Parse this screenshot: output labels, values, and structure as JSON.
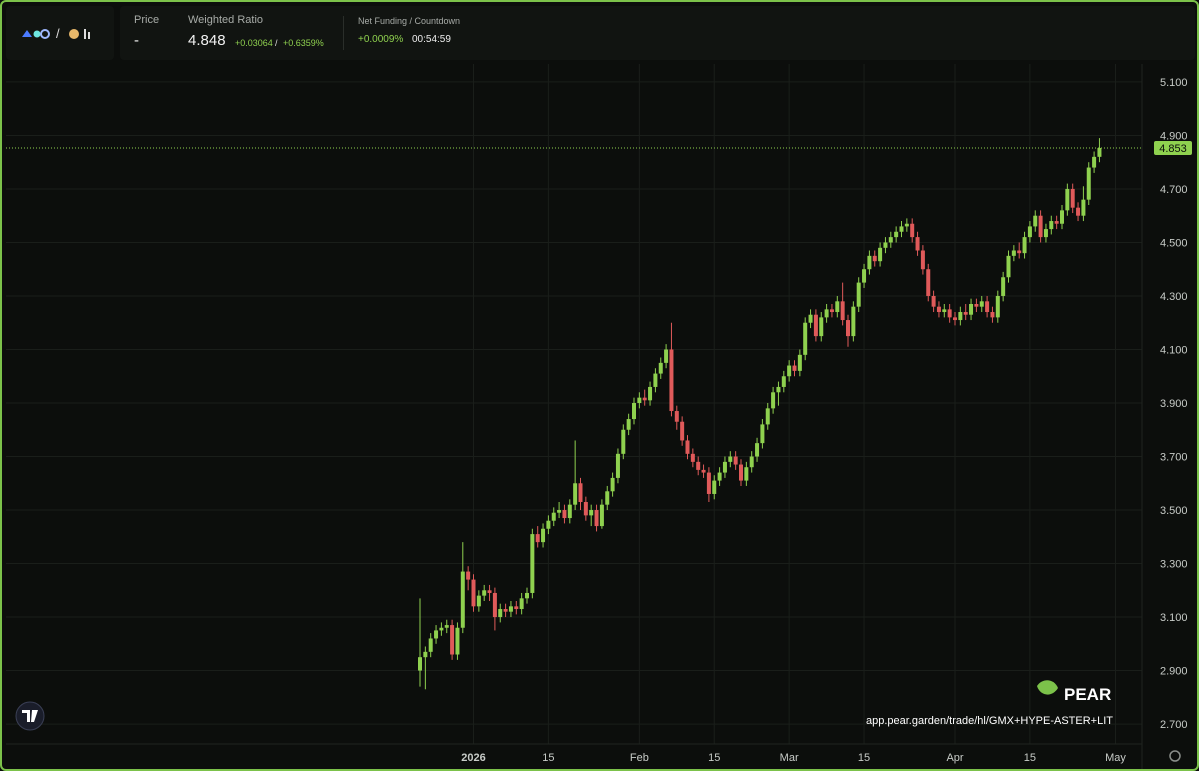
{
  "header": {
    "separator": "/",
    "price_label": "Price",
    "price_value": "-",
    "ratio_label": "Weighted Ratio",
    "ratio_value": "4.848",
    "ratio_change": "+0.03064",
    "ratio_change_pct": "+0.6359%",
    "funding_label": "Net Funding / Countdown",
    "funding_value": "+0.0009%",
    "countdown": "00:54:59"
  },
  "watermark": {
    "brand": "PEAR",
    "url": "app.pear.garden/trade/hl/GMX+HYPE-ASTER+LIT"
  },
  "chart_data": {
    "type": "candlestick",
    "up_color": "#8fd14f",
    "down_color": "#e05a5a",
    "grid": true,
    "ylim": [
      2.633,
      5.167
    ],
    "yticks": [
      {
        "value": 2.7,
        "label": "2.700"
      },
      {
        "value": 2.9,
        "label": "2.900"
      },
      {
        "value": 3.1,
        "label": "3.100"
      },
      {
        "value": 3.3,
        "label": "3.300"
      },
      {
        "value": 3.5,
        "label": "3.500"
      },
      {
        "value": 3.7,
        "label": "3.700"
      },
      {
        "value": 3.9,
        "label": "3.900"
      },
      {
        "value": 4.1,
        "label": "4.100"
      },
      {
        "value": 4.3,
        "label": "4.300"
      },
      {
        "value": 4.5,
        "label": "4.500"
      },
      {
        "value": 4.7,
        "label": "4.700"
      },
      {
        "value": 4.9,
        "label": "4.900"
      },
      {
        "value": 5.1,
        "label": "5.100"
      }
    ],
    "last_price": 4.853,
    "categories": [
      null,
      null,
      null,
      null,
      null,
      null,
      null,
      null,
      null,
      null,
      "2026",
      null,
      null,
      null,
      null,
      null,
      null,
      null,
      null,
      null,
      null,
      null,
      null,
      null,
      "15",
      null,
      null,
      null,
      null,
      null,
      null,
      null,
      null,
      null,
      null,
      null,
      null,
      null,
      null,
      null,
      null,
      "Feb",
      null,
      null,
      null,
      null,
      null,
      null,
      null,
      null,
      null,
      null,
      null,
      null,
      null,
      "15",
      null,
      null,
      null,
      null,
      null,
      null,
      null,
      null,
      null,
      null,
      null,
      null,
      null,
      "Mar",
      null,
      null,
      null,
      null,
      null,
      null,
      null,
      null,
      null,
      null,
      null,
      null,
      null,
      "15",
      null,
      null,
      null,
      null,
      null,
      null,
      null,
      null,
      null,
      null,
      null,
      null,
      null,
      null,
      null,
      null,
      "Apr",
      null,
      null,
      null,
      null,
      null,
      null,
      null,
      null,
      null,
      null,
      null,
      null,
      null,
      "15",
      null,
      null,
      null,
      null,
      null,
      null,
      null,
      null,
      null,
      null,
      null,
      null,
      null,
      null,
      null,
      "May"
    ],
    "open": [
      2.9,
      2.95,
      2.97,
      3.02,
      3.05,
      3.06,
      3.07,
      2.96,
      3.06,
      3.27,
      3.24,
      3.14,
      3.18,
      3.2,
      3.19,
      3.1,
      3.13,
      3.12,
      3.14,
      3.13,
      3.17,
      3.19,
      3.41,
      3.38,
      3.43,
      3.46,
      3.49,
      3.5,
      3.47,
      3.52,
      3.6,
      3.53,
      3.48,
      3.5,
      3.44,
      3.52,
      3.57,
      3.62,
      3.71,
      3.8,
      3.84,
      3.9,
      3.92,
      3.91,
      3.96,
      4.01,
      4.05,
      4.1,
      3.87,
      3.83,
      3.76,
      3.71,
      3.68,
      3.65,
      3.64,
      3.56,
      3.61,
      3.64,
      3.68,
      3.7,
      3.67,
      3.61,
      3.66,
      3.7,
      3.75,
      3.82,
      3.88,
      3.94,
      3.96,
      4.0,
      4.04,
      4.02,
      4.08,
      4.2,
      4.23,
      4.15,
      4.22,
      4.25,
      4.24,
      4.28,
      4.21,
      4.15,
      4.26,
      4.35,
      4.4,
      4.45,
      4.43,
      4.48,
      4.5,
      4.52,
      4.54,
      4.56,
      4.57,
      4.52,
      4.47,
      4.4,
      4.3,
      4.26,
      4.24,
      4.25,
      4.22,
      4.21,
      4.24,
      4.23,
      4.27,
      4.26,
      4.28,
      4.24,
      4.22,
      4.3,
      4.37,
      4.45,
      4.47,
      4.46,
      4.52,
      4.56,
      4.6,
      4.52,
      4.55,
      4.58,
      4.57,
      4.62,
      4.7,
      4.63,
      4.6,
      4.66,
      4.78,
      4.82,
      null,
      null,
      null
    ],
    "high": [
      3.17,
      2.99,
      3.04,
      3.07,
      3.08,
      3.09,
      3.09,
      3.08,
      3.38,
      3.29,
      3.26,
      3.2,
      3.22,
      3.22,
      3.21,
      3.15,
      3.15,
      3.16,
      3.16,
      3.19,
      3.21,
      3.43,
      3.44,
      3.45,
      3.48,
      3.51,
      3.53,
      3.52,
      3.54,
      3.76,
      3.62,
      3.55,
      3.52,
      3.52,
      3.54,
      3.59,
      3.64,
      3.73,
      3.82,
      3.86,
      3.92,
      3.94,
      3.95,
      3.98,
      4.03,
      4.07,
      4.12,
      4.2,
      3.89,
      3.85,
      3.78,
      3.73,
      3.7,
      3.67,
      3.66,
      3.63,
      3.66,
      3.7,
      3.72,
      3.72,
      3.69,
      3.68,
      3.72,
      3.77,
      3.84,
      3.9,
      3.96,
      3.98,
      4.02,
      4.06,
      4.06,
      4.1,
      4.22,
      4.25,
      4.25,
      4.24,
      4.27,
      4.27,
      4.3,
      4.35,
      4.23,
      4.28,
      4.37,
      4.42,
      4.47,
      4.47,
      4.5,
      4.52,
      4.54,
      4.56,
      4.58,
      4.59,
      4.59,
      4.54,
      4.49,
      4.42,
      4.32,
      4.28,
      4.27,
      4.27,
      4.24,
      4.26,
      4.27,
      4.29,
      4.29,
      4.3,
      4.3,
      4.26,
      4.32,
      4.39,
      4.47,
      4.49,
      4.5,
      4.54,
      4.58,
      4.62,
      4.62,
      4.57,
      4.6,
      4.6,
      4.64,
      4.72,
      4.72,
      4.65,
      4.71,
      4.8,
      4.84,
      4.89,
      null,
      null,
      null
    ],
    "low": [
      2.84,
      2.83,
      2.95,
      3.0,
      3.03,
      3.04,
      2.94,
      2.94,
      3.04,
      3.2,
      3.12,
      3.12,
      3.16,
      3.16,
      3.05,
      3.08,
      3.1,
      3.1,
      3.11,
      3.11,
      3.15,
      3.17,
      3.36,
      3.36,
      3.41,
      3.44,
      3.47,
      3.45,
      3.45,
      3.5,
      3.5,
      3.46,
      3.44,
      3.42,
      3.43,
      3.5,
      3.55,
      3.6,
      3.69,
      3.78,
      3.82,
      3.88,
      3.89,
      3.89,
      3.94,
      3.99,
      4.03,
      3.85,
      3.8,
      3.74,
      3.69,
      3.66,
      3.63,
      3.62,
      3.53,
      3.54,
      3.59,
      3.62,
      3.66,
      3.65,
      3.59,
      3.59,
      3.64,
      3.68,
      3.73,
      3.8,
      3.86,
      3.89,
      3.94,
      3.98,
      4.0,
      4.0,
      4.06,
      4.18,
      4.13,
      4.13,
      4.2,
      4.22,
      4.22,
      4.19,
      4.11,
      4.13,
      4.24,
      4.33,
      4.38,
      4.41,
      4.41,
      4.46,
      4.48,
      4.5,
      4.52,
      4.54,
      4.5,
      4.45,
      4.38,
      4.28,
      4.24,
      4.22,
      4.22,
      4.2,
      4.19,
      4.19,
      4.21,
      4.21,
      4.24,
      4.24,
      4.22,
      4.2,
      4.2,
      4.28,
      4.35,
      4.43,
      4.44,
      4.44,
      4.5,
      4.54,
      4.5,
      4.5,
      4.53,
      4.55,
      4.55,
      4.6,
      4.61,
      4.58,
      4.58,
      4.64,
      4.76,
      4.8,
      null,
      null,
      null
    ],
    "close": [
      2.95,
      2.97,
      3.02,
      3.05,
      3.06,
      3.07,
      2.96,
      3.06,
      3.27,
      3.24,
      3.14,
      3.18,
      3.2,
      3.19,
      3.1,
      3.13,
      3.12,
      3.14,
      3.13,
      3.17,
      3.19,
      3.41,
      3.38,
      3.43,
      3.46,
      3.49,
      3.5,
      3.47,
      3.52,
      3.6,
      3.53,
      3.48,
      3.5,
      3.44,
      3.52,
      3.57,
      3.62,
      3.71,
      3.8,
      3.84,
      3.9,
      3.92,
      3.91,
      3.96,
      4.01,
      4.05,
      4.1,
      3.87,
      3.83,
      3.76,
      3.71,
      3.68,
      3.65,
      3.64,
      3.56,
      3.61,
      3.64,
      3.68,
      3.7,
      3.67,
      3.61,
      3.66,
      3.7,
      3.75,
      3.82,
      3.88,
      3.94,
      3.96,
      4.0,
      4.04,
      4.02,
      4.08,
      4.2,
      4.23,
      4.15,
      4.22,
      4.25,
      4.24,
      4.28,
      4.21,
      4.15,
      4.26,
      4.35,
      4.4,
      4.45,
      4.43,
      4.48,
      4.5,
      4.52,
      4.54,
      4.56,
      4.57,
      4.52,
      4.47,
      4.4,
      4.3,
      4.26,
      4.24,
      4.25,
      4.22,
      4.21,
      4.24,
      4.23,
      4.27,
      4.26,
      4.28,
      4.24,
      4.22,
      4.3,
      4.37,
      4.45,
      4.47,
      4.46,
      4.52,
      4.56,
      4.6,
      4.52,
      4.55,
      4.58,
      4.57,
      4.62,
      4.7,
      4.63,
      4.6,
      4.66,
      4.78,
      4.82,
      4.853,
      null,
      null,
      null
    ]
  }
}
